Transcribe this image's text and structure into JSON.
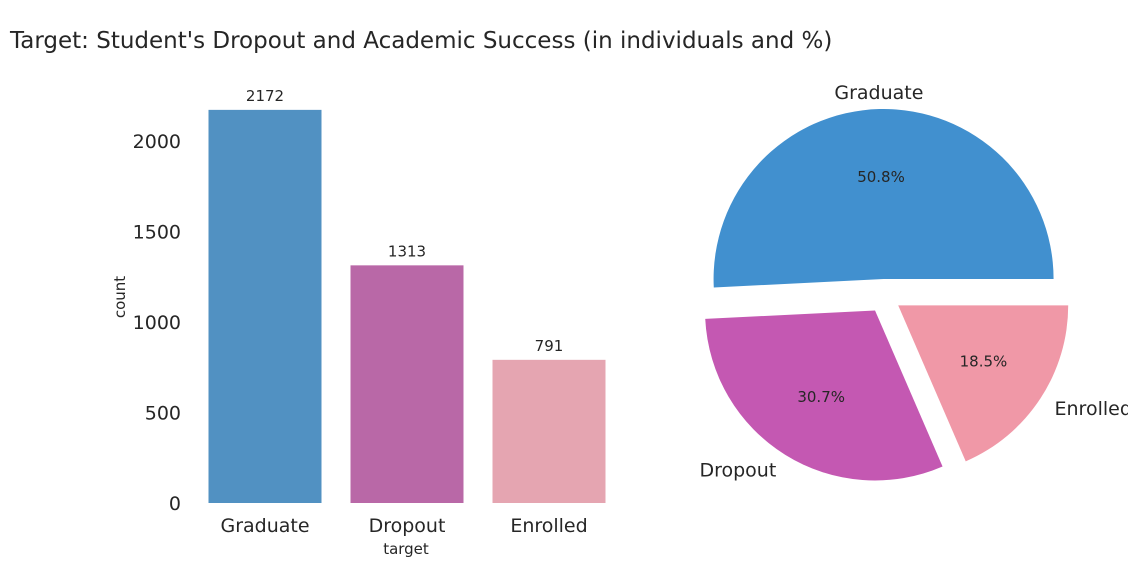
{
  "title": "Target: Student's Dropout and Academic Success (in individuals and %)",
  "chart_data": [
    {
      "type": "bar",
      "categories": [
        "Graduate",
        "Dropout",
        "Enrolled"
      ],
      "values": [
        2172,
        1313,
        791
      ],
      "value_labels": [
        "2172",
        "1313",
        "791"
      ],
      "xlabel": "target",
      "ylabel": "count",
      "ylim": [
        0,
        2200
      ],
      "yticks": [
        0,
        500,
        1000,
        1500,
        2000
      ],
      "ytick_labels": [
        "0",
        "500",
        "1000",
        "1500",
        "2000"
      ],
      "colors": [
        "#5191c2",
        "#b968a7",
        "#e5a5b1"
      ],
      "grid": false
    },
    {
      "type": "pie",
      "labels": [
        "Graduate",
        "Dropout",
        "Enrolled"
      ],
      "values": [
        2172,
        1313,
        791
      ],
      "percent_labels": [
        "50.8%",
        "30.7%",
        "18.5%"
      ],
      "colors": [
        "#4190cf",
        "#c458b2",
        "#f098a7"
      ],
      "exploded": true
    }
  ]
}
